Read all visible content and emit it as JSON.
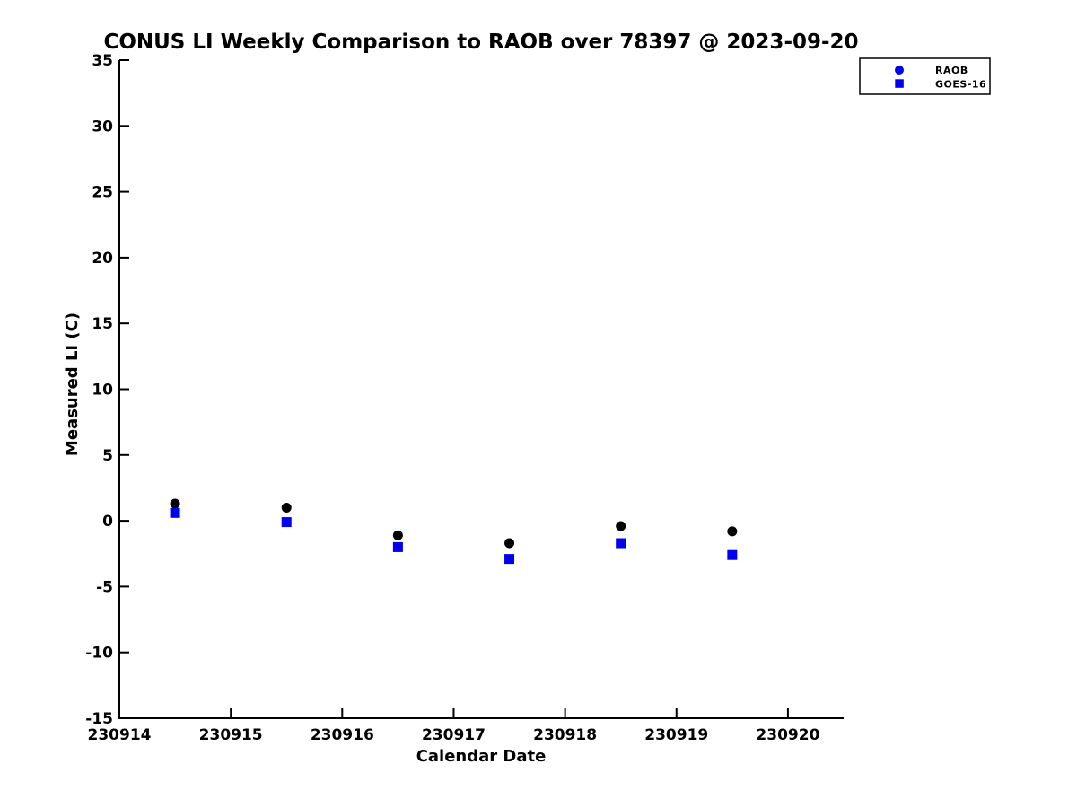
{
  "figure": {
    "background": "#ffffff",
    "accent_blue": "#0000EE",
    "axis_color": "#000000"
  },
  "chart_data": {
    "type": "scatter",
    "title": "CONUS LI Weekly Comparison to RAOB over 78397 @ 2023-09-20",
    "xlabel": "Calendar Date",
    "ylabel": "Measured LI (C)",
    "xlim": [
      230914,
      230920.5
    ],
    "ylim": [
      -15,
      35
    ],
    "xticks": [
      230914,
      230915,
      230916,
      230917,
      230918,
      230919,
      230920
    ],
    "yticks": [
      -15,
      -10,
      -5,
      0,
      5,
      10,
      15,
      20,
      25,
      30,
      35
    ],
    "grid": false,
    "legend_position": "top-right",
    "x": [
      230914.5,
      230915.5,
      230916.5,
      230917.5,
      230918.5,
      230919.5
    ],
    "series": [
      {
        "name": "RAOB",
        "marker": "circle",
        "plot_color": "#000000",
        "legend_color": "#0000EE",
        "values": [
          1.3,
          1.0,
          -1.1,
          -1.7,
          -0.4,
          -0.8
        ]
      },
      {
        "name": "GOES-16",
        "marker": "square",
        "plot_color": "#0000EE",
        "legend_color": "#0000EE",
        "values": [
          0.6,
          -0.1,
          -2.0,
          -2.9,
          -1.7,
          -2.6
        ]
      }
    ]
  }
}
